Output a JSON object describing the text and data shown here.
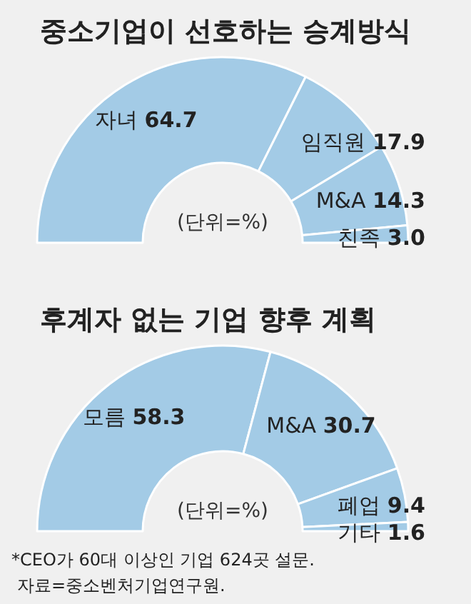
{
  "chart_data": [
    {
      "type": "donut",
      "title": "중소기업이 선호하는 승계방식",
      "subtitle": "(단위=%)",
      "categories": [
        "자녀",
        "임직원",
        "M&A",
        "친족"
      ],
      "values": [
        64.7,
        17.9,
        14.3,
        3.0
      ],
      "value_labels": [
        "64.7",
        "17.9",
        "14.3",
        "3.0"
      ],
      "colors": [
        "#a3cbe6",
        "#a3cbe6",
        "#a3cbe6",
        "#a3cbe6"
      ]
    },
    {
      "type": "donut",
      "title": "후계자 없는 기업 향후 계획",
      "subtitle": "(단위=%)",
      "categories": [
        "모름",
        "M&A",
        "폐업",
        "기타"
      ],
      "values": [
        58.3,
        30.7,
        9.4,
        1.6
      ],
      "value_labels": [
        "58.3",
        "30.7",
        "9.4",
        "1.6"
      ],
      "colors": [
        "#a3cbe6",
        "#a3cbe6",
        "#a3cbe6",
        "#a3cbe6"
      ],
      "annotations": [
        "*CEO가 60대 이상인 기업 624곳 설문.",
        "자료=중소벤처기업연구원."
      ]
    }
  ]
}
